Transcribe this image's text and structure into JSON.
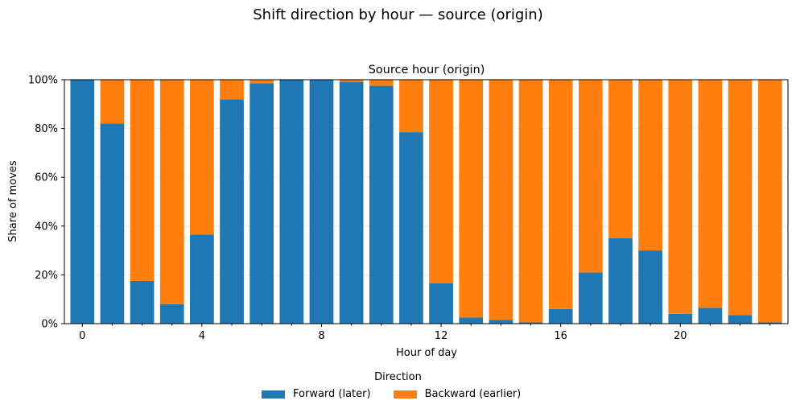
{
  "figure_title": "Shift direction by hour — source (origin)",
  "colors": {
    "forward": "#1f77b4",
    "backward": "#ff7f0e",
    "axis": "#000000",
    "grid": "#e6e6e6"
  },
  "legend": {
    "title": "Direction",
    "items": [
      "Forward (later)",
      "Backward (earlier)"
    ]
  },
  "chart_data": {
    "type": "bar",
    "stacked": true,
    "title": "Source hour (origin)",
    "xlabel": "Hour of day",
    "ylabel": "Share of moves",
    "categories": [
      0,
      1,
      2,
      3,
      4,
      5,
      6,
      7,
      8,
      9,
      10,
      11,
      12,
      13,
      14,
      15,
      16,
      17,
      18,
      19,
      20,
      21,
      22,
      23
    ],
    "xticks": [
      0,
      4,
      8,
      12,
      16,
      20
    ],
    "ylim": [
      0,
      100
    ],
    "yticks": [
      "0%",
      "20%",
      "40%",
      "60%",
      "80%",
      "100%"
    ],
    "grid": "horizontal",
    "legend_position": "bottom-center",
    "series": [
      {
        "name": "Forward (later)",
        "values": [
          100,
          82,
          17.5,
          8,
          36.5,
          92,
          98.5,
          100,
          100,
          99,
          97.5,
          78.5,
          16.5,
          2.5,
          1.5,
          0.5,
          6,
          21,
          35,
          30,
          4,
          6.5,
          3.5,
          0.5
        ]
      },
      {
        "name": "Backward (earlier)",
        "values": [
          0,
          18,
          82.5,
          92,
          63.5,
          8,
          1.5,
          0,
          0,
          1,
          2.5,
          21.5,
          83.5,
          97.5,
          98.5,
          99.5,
          94,
          79,
          65,
          70,
          96,
          93.5,
          96.5,
          99.5
        ]
      }
    ]
  }
}
